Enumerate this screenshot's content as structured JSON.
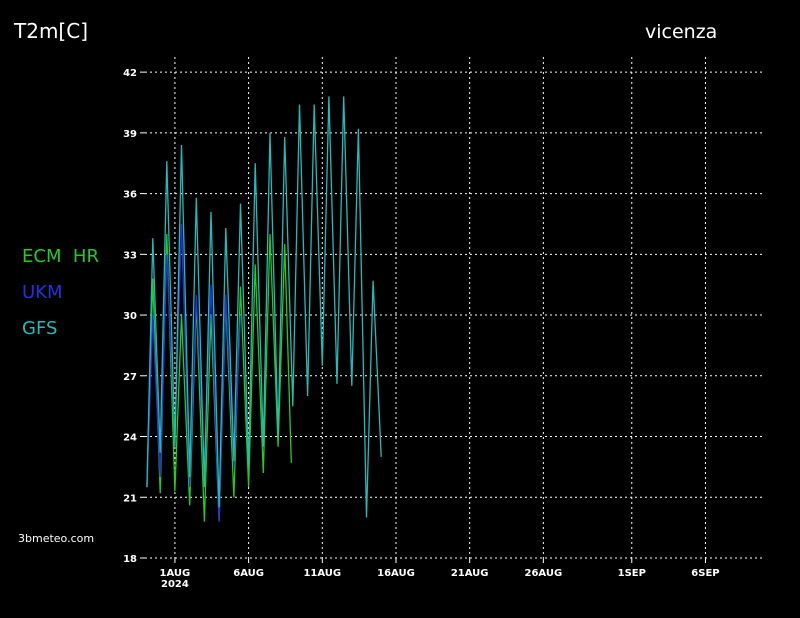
{
  "chart_data": {
    "type": "line",
    "title": "T2m[C]",
    "location": "vicenza",
    "credit": "3bmeteo.com",
    "year_label": "2024",
    "xlim": [
      -1.03,
      40.7
    ],
    "xticks": [
      {
        "value": 1,
        "label": "1AUG"
      },
      {
        "value": 6,
        "label": "6AUG"
      },
      {
        "value": 11,
        "label": "11AUG"
      },
      {
        "value": 16,
        "label": "16AUG"
      },
      {
        "value": 21,
        "label": "21AUG"
      },
      {
        "value": 26,
        "label": "26AUG"
      },
      {
        "value": 32,
        "label": "1SEP"
      },
      {
        "value": 37,
        "label": "6SEP"
      }
    ],
    "ylim": [
      18,
      42.5
    ],
    "yticks": [
      18,
      21,
      24,
      27,
      30,
      33,
      36,
      39,
      42
    ],
    "grid": true,
    "series": [
      {
        "name": "ECM  HR",
        "color": "#22cc22",
        "x": [
          -0.9,
          -0.5,
          0,
          0.45,
          1.0,
          1.45,
          2.0,
          2.45,
          3.0,
          3.45,
          4.0,
          4.45,
          5.0,
          5.45,
          6.0,
          6.45,
          7.0,
          7.45,
          8.0,
          8.45,
          8.9
        ],
        "values": [
          21.5,
          31.8,
          21.2,
          34,
          21.3,
          30,
          20.6,
          30.6,
          19.8,
          30,
          19.8,
          30.6,
          21,
          31.4,
          21.5,
          32.5,
          22.2,
          34,
          23.5,
          33.5,
          22.7
        ]
      },
      {
        "name": "UKM",
        "color": "#2233dd",
        "x": [
          -0.9,
          -0.5,
          0,
          0.45,
          1.0,
          1.45,
          2.0,
          2.45,
          3.0,
          3.45,
          4.0,
          4.45,
          5.0,
          5.45
        ],
        "values": [
          21.5,
          30,
          22,
          33,
          24,
          34.5,
          21.5,
          31,
          22.5,
          31.5,
          19.8,
          31,
          22.5,
          30
        ]
      },
      {
        "name": "GFS",
        "color": "#22bbbb",
        "x": [
          -0.9,
          -0.5,
          0,
          0.45,
          1.0,
          1.45,
          2.0,
          2.45,
          3.0,
          3.45,
          4.0,
          4.45,
          5.0,
          5.45,
          6.0,
          6.45,
          7.0,
          7.45,
          8.0,
          8.45,
          9.0,
          9.45,
          10.0,
          10.45,
          11.0,
          11.45,
          12.0,
          12.45,
          13.0,
          13.45,
          14.0,
          14.45,
          15.0
        ],
        "values": [
          21.5,
          33.8,
          23.2,
          37.6,
          23.5,
          38.4,
          22,
          35.8,
          21.5,
          35.1,
          20.5,
          34.3,
          22.8,
          35.5,
          22.5,
          37.5,
          23.5,
          39,
          24,
          38.8,
          25.5,
          40.4,
          26,
          40.4,
          27.5,
          40.8,
          26.6,
          40.8,
          26.5,
          39.2,
          20,
          31.7,
          23
        ]
      }
    ]
  }
}
